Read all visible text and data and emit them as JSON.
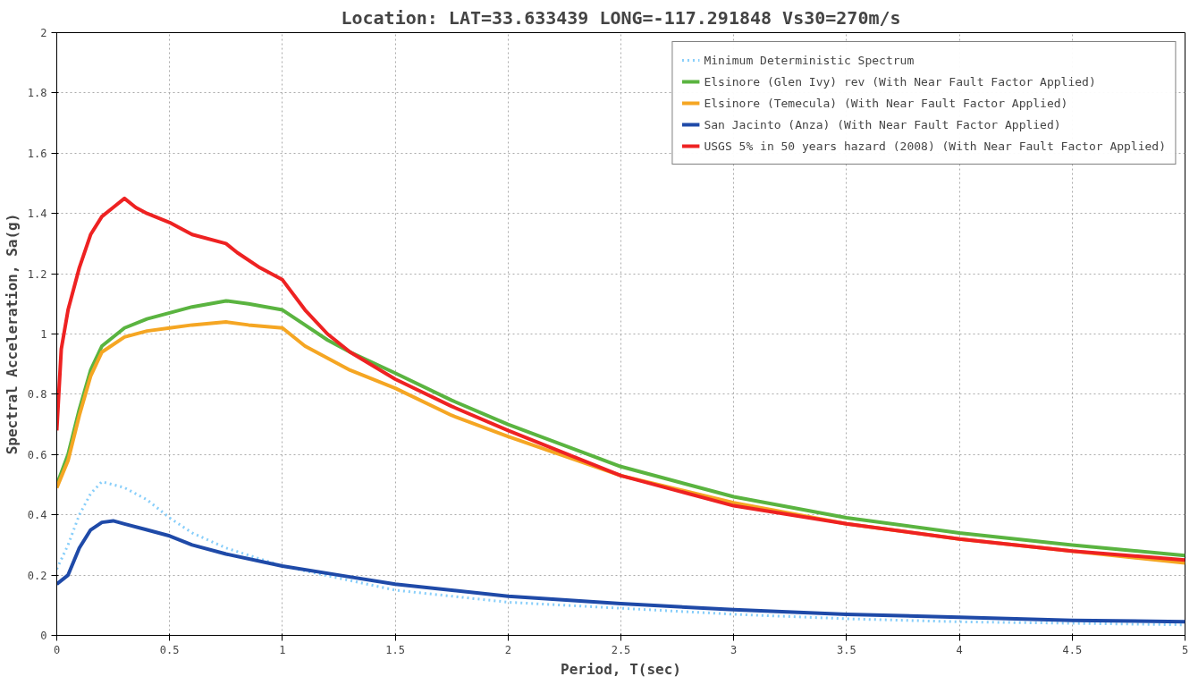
{
  "chart_data": {
    "type": "line",
    "title": "Location: LAT=33.633439 LONG=-117.291848 Vs30=270m/s",
    "xlabel": "Period, T(sec)",
    "ylabel": "Spectral Acceleration, Sa(g)",
    "xlim": [
      0,
      5
    ],
    "ylim": [
      0,
      2
    ],
    "xticks": [
      0,
      0.5,
      1,
      1.5,
      2,
      2.5,
      3,
      3.5,
      4,
      4.5,
      5
    ],
    "yticks": [
      0,
      0.2,
      0.4,
      0.6,
      0.8,
      1,
      1.2,
      1.4,
      1.6,
      1.8,
      2
    ],
    "grid": true,
    "legend": "top right",
    "marker": "none",
    "series": [
      {
        "name": "Minimum Deterministic Spectrum",
        "color": "#87cefa",
        "line_style": "dotted",
        "x": [
          0,
          0.05,
          0.1,
          0.15,
          0.2,
          0.3,
          0.4,
          0.5,
          0.6,
          0.75,
          1,
          1.5,
          2,
          2.5,
          3,
          3.5,
          4,
          4.5,
          5
        ],
        "values": [
          0.22,
          0.3,
          0.4,
          0.47,
          0.51,
          0.49,
          0.45,
          0.39,
          0.34,
          0.29,
          0.23,
          0.15,
          0.11,
          0.09,
          0.07,
          0.055,
          0.045,
          0.04,
          0.035
        ]
      },
      {
        "name": "Elsinore (Glen Ivy) rev (With Near Fault Factor Applied)",
        "color": "#5ab440",
        "line_style": "solid",
        "x": [
          0,
          0.05,
          0.1,
          0.15,
          0.2,
          0.3,
          0.4,
          0.5,
          0.6,
          0.75,
          0.85,
          1,
          1.1,
          1.2,
          1.3,
          1.5,
          1.75,
          2,
          2.5,
          3,
          3.5,
          4,
          4.5,
          5
        ],
        "values": [
          0.5,
          0.6,
          0.75,
          0.88,
          0.96,
          1.02,
          1.05,
          1.07,
          1.09,
          1.11,
          1.1,
          1.08,
          1.03,
          0.98,
          0.94,
          0.87,
          0.78,
          0.7,
          0.56,
          0.46,
          0.39,
          0.34,
          0.3,
          0.265
        ]
      },
      {
        "name": "Elsinore (Temecula) (With Near Fault Factor Applied)",
        "color": "#f5a623",
        "line_style": "solid",
        "x": [
          0,
          0.05,
          0.1,
          0.15,
          0.2,
          0.3,
          0.4,
          0.5,
          0.6,
          0.75,
          0.85,
          1,
          1.1,
          1.2,
          1.3,
          1.5,
          1.75,
          2,
          2.5,
          3,
          3.5,
          4,
          4.5,
          5
        ],
        "values": [
          0.49,
          0.58,
          0.73,
          0.86,
          0.94,
          0.99,
          1.01,
          1.02,
          1.03,
          1.04,
          1.03,
          1.02,
          0.96,
          0.92,
          0.88,
          0.82,
          0.73,
          0.66,
          0.53,
          0.44,
          0.37,
          0.32,
          0.28,
          0.24
        ]
      },
      {
        "name": "San Jacinto (Anza) (With Near Fault Factor Applied)",
        "color": "#1f4aa8",
        "line_style": "solid",
        "x": [
          0,
          0.05,
          0.1,
          0.15,
          0.2,
          0.25,
          0.3,
          0.4,
          0.5,
          0.6,
          0.75,
          1,
          1.25,
          1.5,
          2,
          2.5,
          3,
          3.5,
          4,
          4.5,
          5
        ],
        "values": [
          0.17,
          0.2,
          0.29,
          0.35,
          0.375,
          0.38,
          0.37,
          0.35,
          0.33,
          0.3,
          0.27,
          0.23,
          0.2,
          0.17,
          0.13,
          0.105,
          0.085,
          0.07,
          0.06,
          0.05,
          0.045
        ]
      },
      {
        "name": "USGS 5% in 50 years hazard (2008) (With Near Fault Factor Applied)",
        "color": "#ee2222",
        "line_style": "solid",
        "x": [
          0,
          0.02,
          0.05,
          0.1,
          0.15,
          0.2,
          0.25,
          0.3,
          0.35,
          0.4,
          0.5,
          0.6,
          0.75,
          0.8,
          0.9,
          1,
          1.1,
          1.2,
          1.3,
          1.5,
          1.75,
          2,
          2.5,
          3,
          3.5,
          4,
          4.5,
          5
        ],
        "values": [
          0.68,
          0.95,
          1.08,
          1.22,
          1.33,
          1.39,
          1.42,
          1.45,
          1.42,
          1.4,
          1.37,
          1.33,
          1.3,
          1.27,
          1.22,
          1.18,
          1.08,
          1.0,
          0.94,
          0.85,
          0.76,
          0.68,
          0.53,
          0.43,
          0.37,
          0.32,
          0.28,
          0.25
        ]
      }
    ]
  }
}
